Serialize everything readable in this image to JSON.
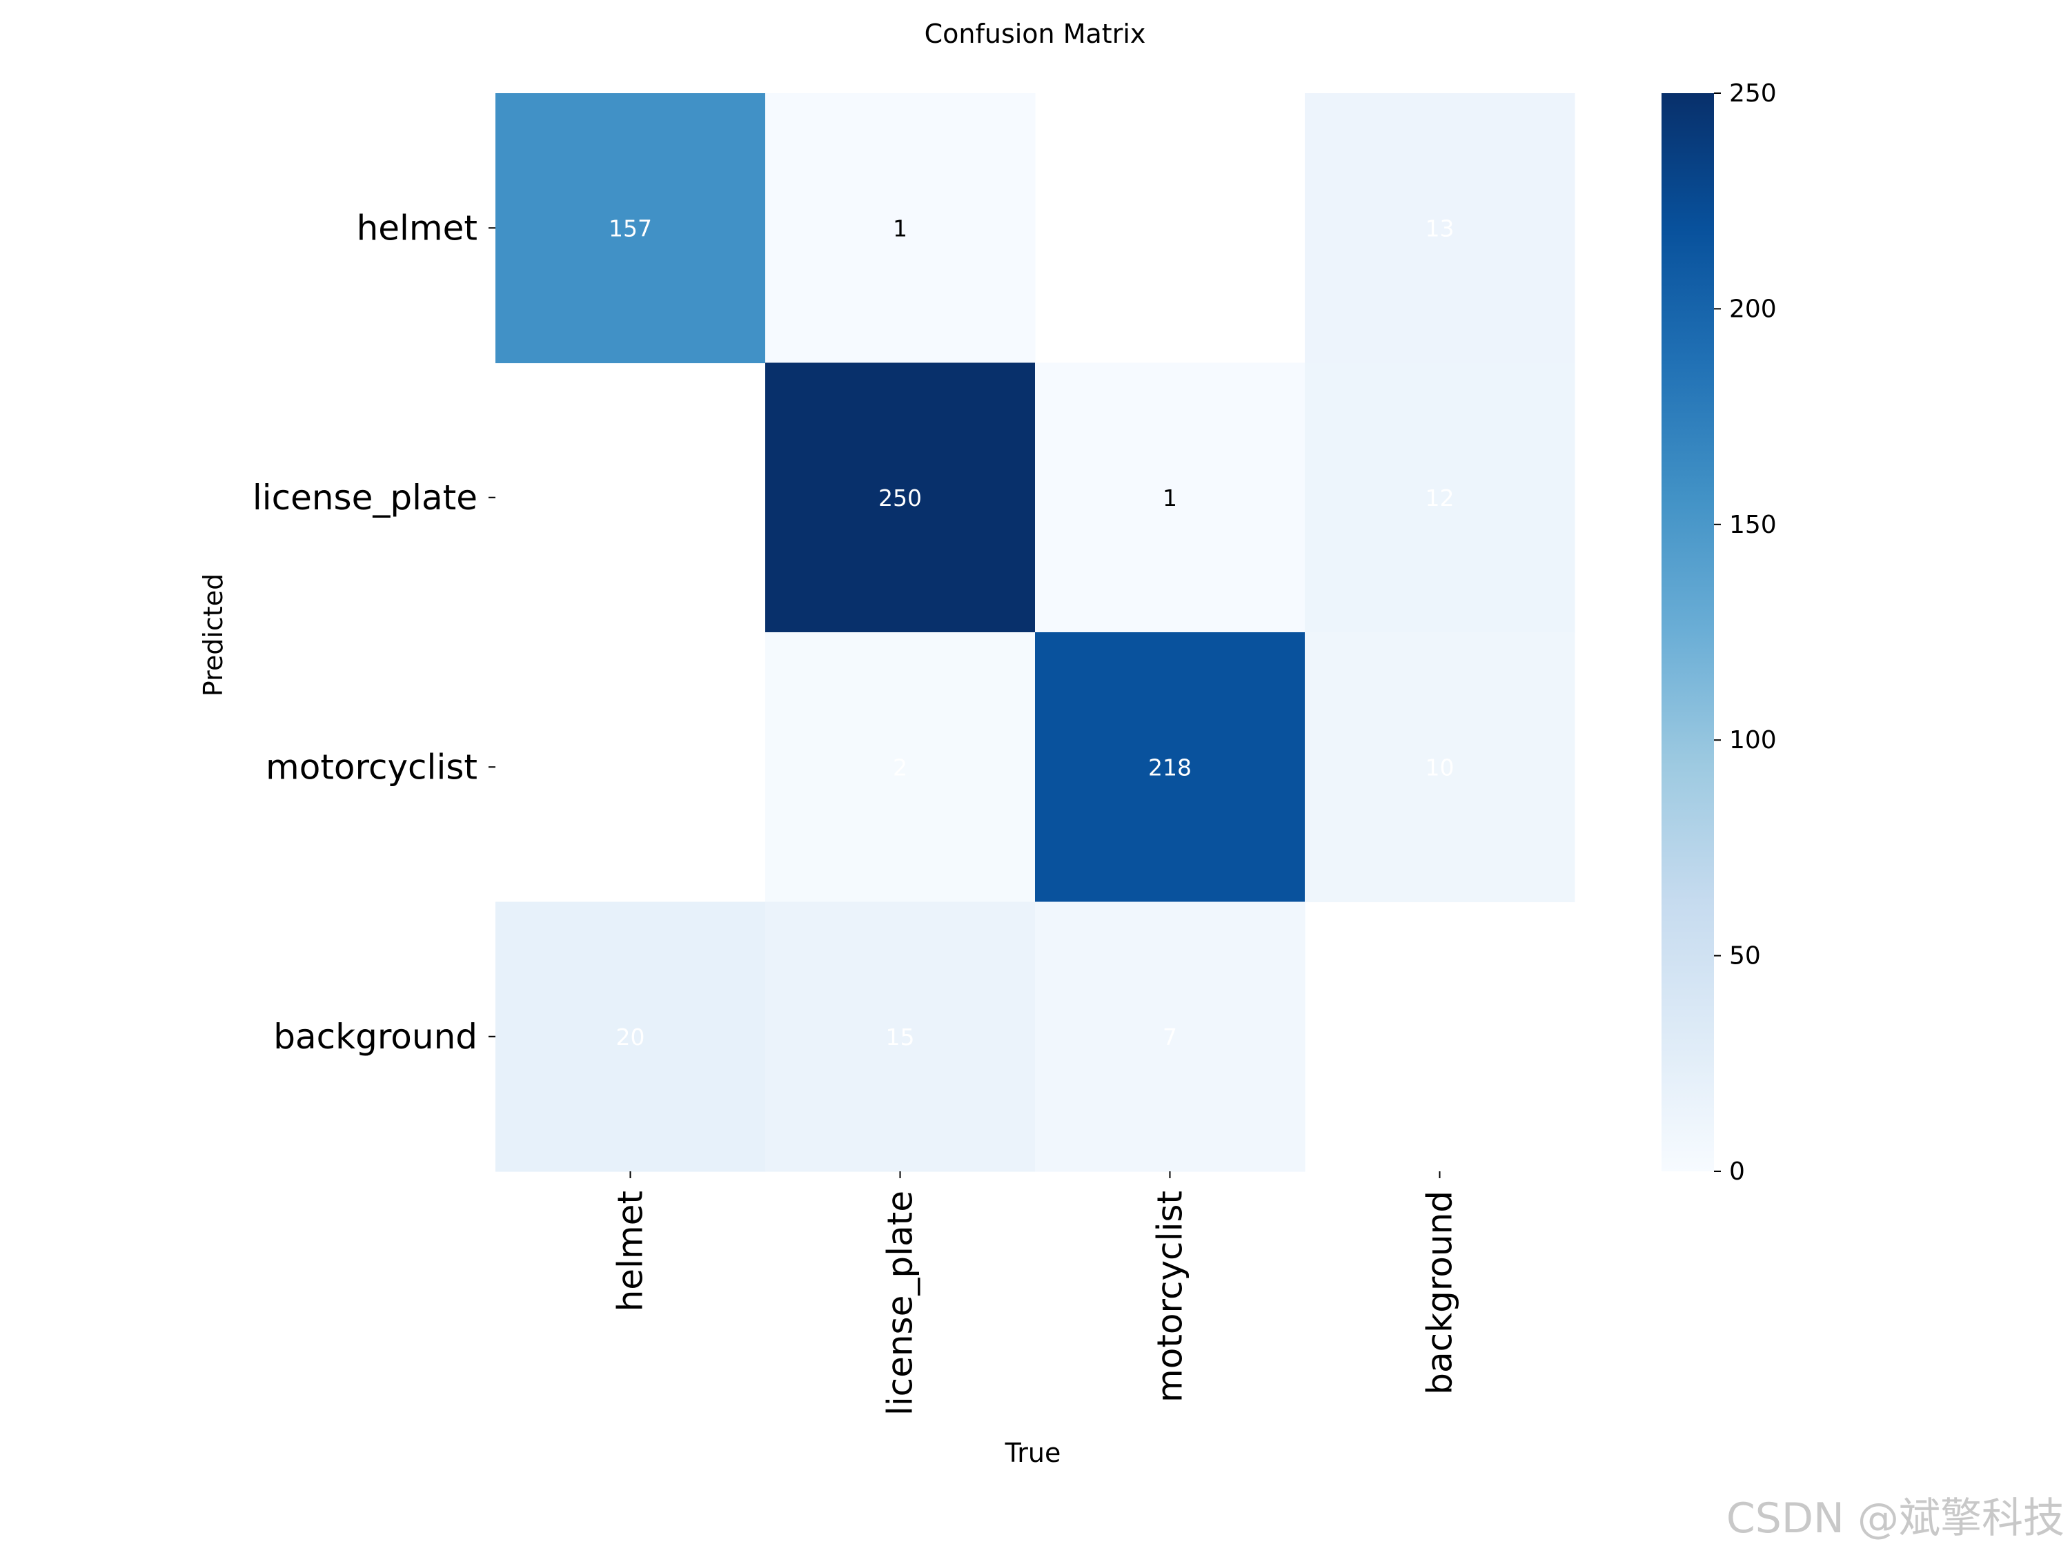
{
  "chart_data": {
    "type": "heatmap",
    "title": "Confusion Matrix",
    "xlabel": "True",
    "ylabel": "Predicted",
    "x_categories": [
      "helmet",
      "license_plate",
      "motorcyclist",
      "background"
    ],
    "y_categories": [
      "helmet",
      "license_plate",
      "motorcyclist",
      "background"
    ],
    "values": [
      [
        157,
        1,
        null,
        13
      ],
      [
        null,
        250,
        1,
        12
      ],
      [
        null,
        2,
        218,
        10
      ],
      [
        20,
        15,
        7,
        null
      ]
    ],
    "colormap": "Blues",
    "colorbar": {
      "min": 0,
      "max": 250,
      "ticks": [
        0,
        50,
        100,
        150,
        200,
        250
      ]
    }
  },
  "watermark": "CSDN @斌擎科技"
}
